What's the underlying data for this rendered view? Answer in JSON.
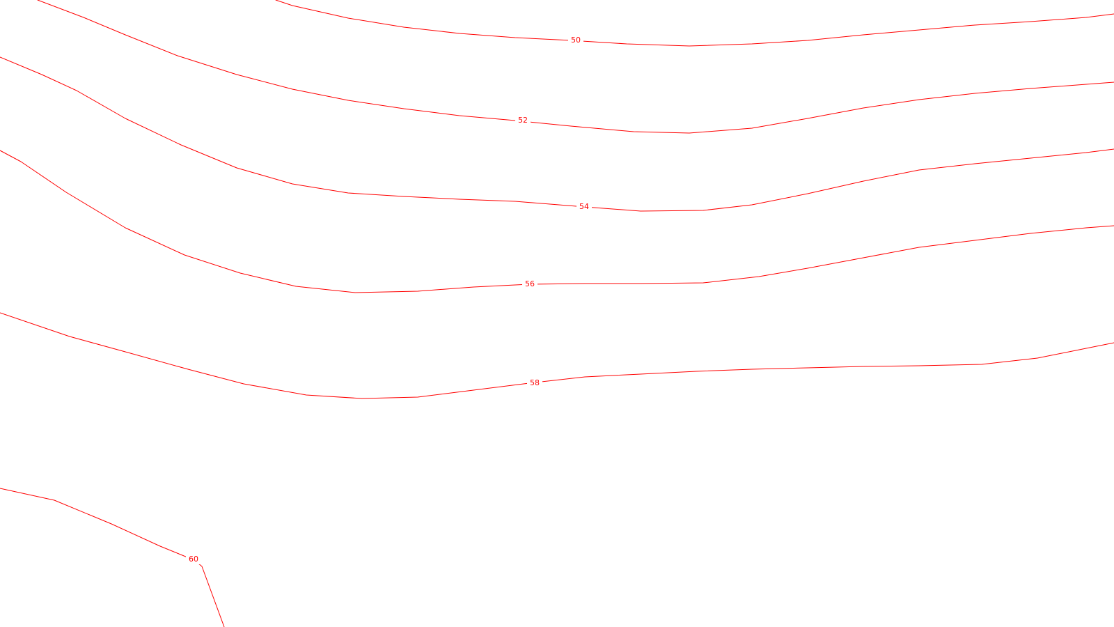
{
  "map": {
    "line_color": "#ff0000",
    "background_color": "#ffffff",
    "contours": [
      {
        "value": 50,
        "label": "50"
      },
      {
        "value": 52,
        "label": "52"
      },
      {
        "value": 54,
        "label": "54"
      },
      {
        "value": 56,
        "label": "56"
      },
      {
        "value": 58,
        "label": "58"
      },
      {
        "value": 60,
        "label": "60"
      }
    ]
  }
}
